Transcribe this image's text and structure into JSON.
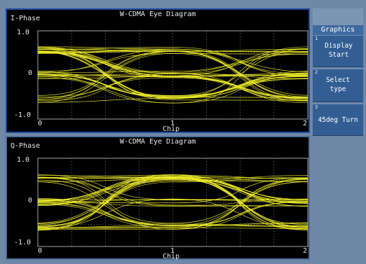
{
  "plots": [
    {
      "title": "W-CDMA Eye Diagram",
      "phase": "I-Phase",
      "y_ticks": [
        "1.0",
        "0",
        "-1.0"
      ],
      "x_ticks": [
        "0",
        "1",
        "2"
      ],
      "x_label": "Chip"
    },
    {
      "title": "W-CDMA Eye Diagram",
      "phase": "Q-Phase",
      "y_ticks": [
        "1.0",
        "0",
        "-1.0"
      ],
      "x_ticks": [
        "0",
        "1",
        "2"
      ],
      "x_label": "Chip"
    }
  ],
  "softkeys": {
    "header": "Graphics",
    "items": [
      {
        "num": "1",
        "label": "Display Start"
      },
      {
        "num": "2",
        "label": "Select type"
      },
      {
        "num": "3",
        "label": "45deg Turn"
      }
    ]
  },
  "colors": {
    "trace": "#f2ef2a",
    "grid": "#c8c8c8",
    "plot_bg": "#000000"
  }
}
